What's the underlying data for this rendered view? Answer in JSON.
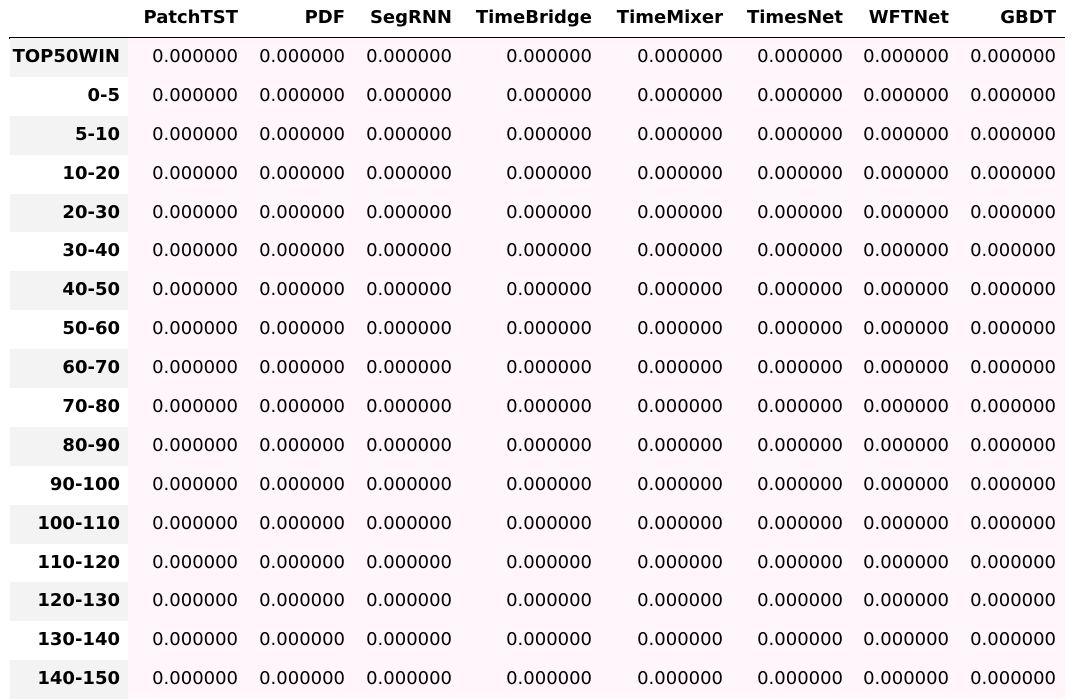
{
  "table": {
    "columns": [
      "PatchTST",
      "PDF",
      "SegRNN",
      "TimeBridge",
      "TimeMixer",
      "TimesNet",
      "WFTNet",
      "GBDT"
    ],
    "rows": [
      {
        "index": "TOP50WIN",
        "values": [
          "0.000000",
          "0.000000",
          "0.000000",
          "0.000000",
          "0.000000",
          "0.000000",
          "0.000000",
          "0.000000"
        ]
      },
      {
        "index": "0-5",
        "values": [
          "0.000000",
          "0.000000",
          "0.000000",
          "0.000000",
          "0.000000",
          "0.000000",
          "0.000000",
          "0.000000"
        ]
      },
      {
        "index": "5-10",
        "values": [
          "0.000000",
          "0.000000",
          "0.000000",
          "0.000000",
          "0.000000",
          "0.000000",
          "0.000000",
          "0.000000"
        ]
      },
      {
        "index": "10-20",
        "values": [
          "0.000000",
          "0.000000",
          "0.000000",
          "0.000000",
          "0.000000",
          "0.000000",
          "0.000000",
          "0.000000"
        ]
      },
      {
        "index": "20-30",
        "values": [
          "0.000000",
          "0.000000",
          "0.000000",
          "0.000000",
          "0.000000",
          "0.000000",
          "0.000000",
          "0.000000"
        ]
      },
      {
        "index": "30-40",
        "values": [
          "0.000000",
          "0.000000",
          "0.000000",
          "0.000000",
          "0.000000",
          "0.000000",
          "0.000000",
          "0.000000"
        ]
      },
      {
        "index": "40-50",
        "values": [
          "0.000000",
          "0.000000",
          "0.000000",
          "0.000000",
          "0.000000",
          "0.000000",
          "0.000000",
          "0.000000"
        ]
      },
      {
        "index": "50-60",
        "values": [
          "0.000000",
          "0.000000",
          "0.000000",
          "0.000000",
          "0.000000",
          "0.000000",
          "0.000000",
          "0.000000"
        ]
      },
      {
        "index": "60-70",
        "values": [
          "0.000000",
          "0.000000",
          "0.000000",
          "0.000000",
          "0.000000",
          "0.000000",
          "0.000000",
          "0.000000"
        ]
      },
      {
        "index": "70-80",
        "values": [
          "0.000000",
          "0.000000",
          "0.000000",
          "0.000000",
          "0.000000",
          "0.000000",
          "0.000000",
          "0.000000"
        ]
      },
      {
        "index": "80-90",
        "values": [
          "0.000000",
          "0.000000",
          "0.000000",
          "0.000000",
          "0.000000",
          "0.000000",
          "0.000000",
          "0.000000"
        ]
      },
      {
        "index": "90-100",
        "values": [
          "0.000000",
          "0.000000",
          "0.000000",
          "0.000000",
          "0.000000",
          "0.000000",
          "0.000000",
          "0.000000"
        ]
      },
      {
        "index": "100-110",
        "values": [
          "0.000000",
          "0.000000",
          "0.000000",
          "0.000000",
          "0.000000",
          "0.000000",
          "0.000000",
          "0.000000"
        ]
      },
      {
        "index": "110-120",
        "values": [
          "0.000000",
          "0.000000",
          "0.000000",
          "0.000000",
          "0.000000",
          "0.000000",
          "0.000000",
          "0.000000"
        ]
      },
      {
        "index": "120-130",
        "values": [
          "0.000000",
          "0.000000",
          "0.000000",
          "0.000000",
          "0.000000",
          "0.000000",
          "0.000000",
          "0.000000"
        ]
      },
      {
        "index": "130-140",
        "values": [
          "0.000000",
          "0.000000",
          "0.000000",
          "0.000000",
          "0.000000",
          "0.000000",
          "0.000000",
          "0.000000"
        ]
      },
      {
        "index": "140-150",
        "values": [
          "0.000000",
          "0.000000",
          "0.000000",
          "0.000000",
          "0.000000",
          "0.000000",
          "0.000000",
          "0.000000"
        ]
      }
    ],
    "colors": {
      "index_stripe": "#f3f3f3",
      "cell_background": "#fff5fa",
      "rule": "#000000"
    }
  }
}
